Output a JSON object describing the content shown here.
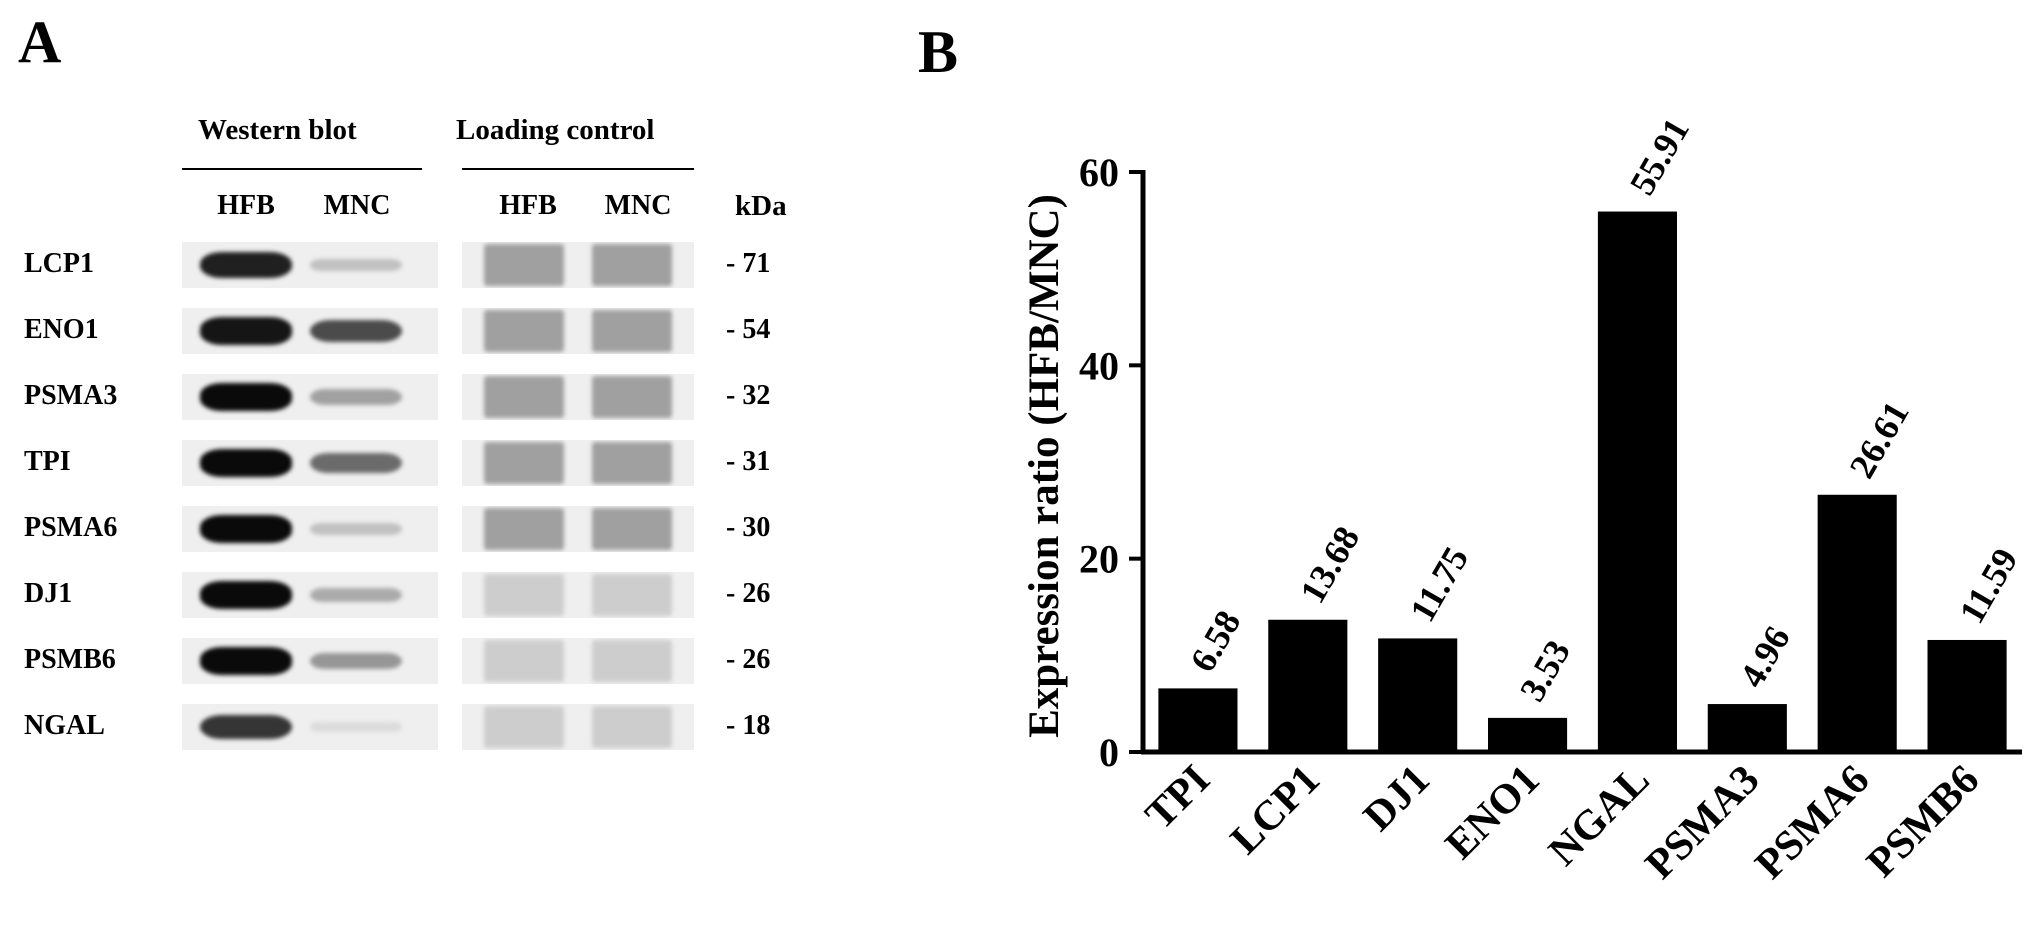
{
  "panel_a": {
    "letter": "A",
    "western_blot_header": "Western blot",
    "loading_control_header": "Loading control",
    "lanes": [
      "HFB",
      "MNC",
      "HFB",
      "MNC"
    ],
    "kda_header": "kDa",
    "rows": [
      {
        "protein": "LCP1",
        "kda": "- 71",
        "hfb_intensity": 0.9,
        "mnc_intensity": 0.15
      },
      {
        "protein": "ENO1",
        "kda": "- 54",
        "hfb_intensity": 0.95,
        "mnc_intensity": 0.7
      },
      {
        "protein": "PSMA3",
        "kda": "- 32",
        "hfb_intensity": 1.0,
        "mnc_intensity": 0.3
      },
      {
        "protein": "TPI",
        "kda": "- 31",
        "hfb_intensity": 1.0,
        "mnc_intensity": 0.55
      },
      {
        "protein": "PSMA6",
        "kda": "- 30",
        "hfb_intensity": 1.0,
        "mnc_intensity": 0.15
      },
      {
        "protein": "DJ1",
        "kda": "- 26",
        "hfb_intensity": 1.0,
        "mnc_intensity": 0.25
      },
      {
        "protein": "PSMB6",
        "kda": "- 26",
        "hfb_intensity": 1.0,
        "mnc_intensity": 0.35
      },
      {
        "protein": "NGAL",
        "kda": "- 18",
        "hfb_intensity": 0.8,
        "mnc_intensity": 0.03
      }
    ]
  },
  "chart_data": {
    "panel_letter": "B",
    "type": "bar",
    "categories": [
      "TPI",
      "LCP1",
      "DJ1",
      "ENO1",
      "NGAL",
      "PSMA3",
      "PSMA6",
      "PSMB6"
    ],
    "values": [
      6.58,
      13.68,
      11.75,
      3.53,
      55.91,
      4.96,
      26.61,
      11.59
    ],
    "value_labels": [
      "6.58",
      "13.68",
      "11.75",
      "3.53",
      "55.91",
      "4.96",
      "26.61",
      "11.59"
    ],
    "title": "",
    "xlabel": "",
    "ylabel": "Expression ratio (HFB/MNC)",
    "ylim": [
      0,
      60
    ],
    "yticks": [
      0,
      20,
      40,
      60
    ],
    "bar_color": "#000000",
    "grid": false,
    "legend": "none"
  }
}
